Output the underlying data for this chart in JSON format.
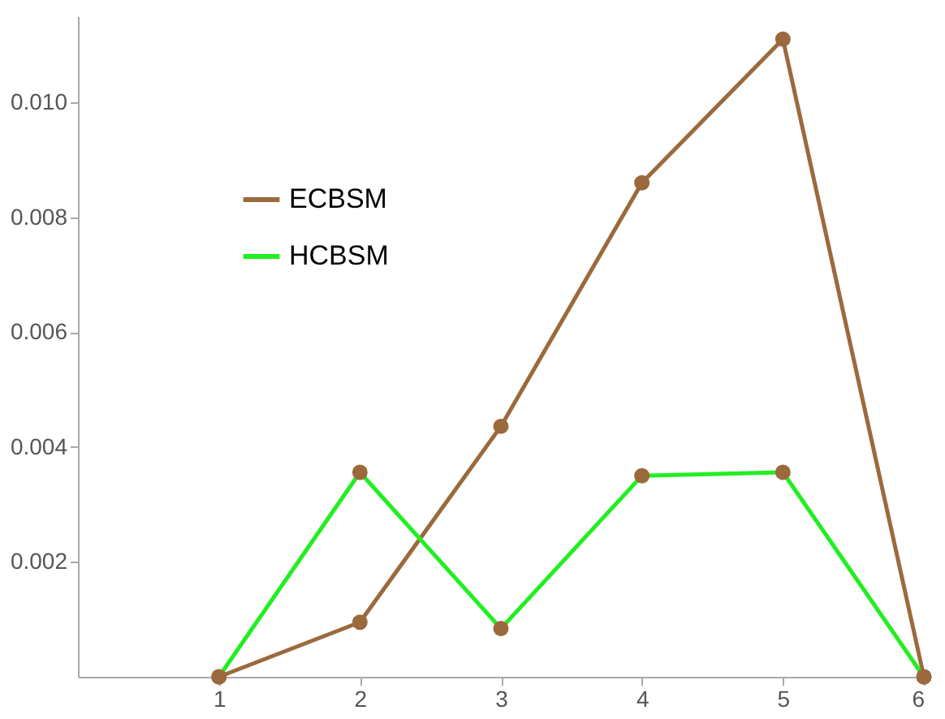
{
  "chart_data": {
    "type": "line",
    "x": [
      1,
      2,
      3,
      4,
      5,
      6
    ],
    "series": [
      {
        "name": "ECBSM",
        "color": "#9b6a3c",
        "values": [
          0,
          0.00095,
          0.00436,
          0.0086,
          0.0111,
          0
        ]
      },
      {
        "name": "HCBSM",
        "color": "#22ee22",
        "values": [
          0,
          0.00356,
          0.00084,
          0.0035,
          0.00356,
          0
        ]
      }
    ],
    "xlim": [
      0,
      6
    ],
    "xticks": [
      1,
      2,
      3,
      4,
      5,
      6
    ],
    "ylim": [
      0,
      0.0115
    ],
    "yticks": [
      0.002,
      0.004,
      0.006,
      0.008,
      {
        "value": 0.01,
        "label": "0.010"
      }
    ],
    "grid": false,
    "legend": "top left",
    "marker": "circle",
    "line_style": "solid"
  }
}
